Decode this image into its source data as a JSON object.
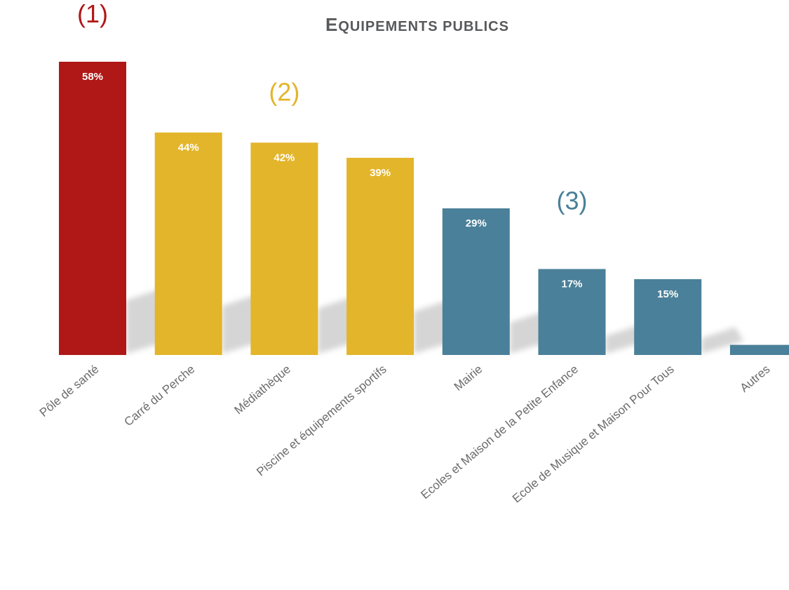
{
  "chart_data": {
    "type": "bar",
    "title": "Equipements publics",
    "categories": [
      "Pôle de santé",
      "Carré du Perche",
      "Médiathèque",
      "Piscine et équipements sportifs",
      "Mairie",
      "Ecoles et Maison de la Petite Enfance",
      "Ecole de Musique et Maison Pour Tous",
      "Autres"
    ],
    "values": [
      58,
      44,
      42,
      39,
      29,
      17,
      15,
      2
    ],
    "value_labels": [
      "58%",
      "44%",
      "42%",
      "39%",
      "29%",
      "17%",
      "15%",
      ""
    ],
    "groups": [
      1,
      2,
      2,
      2,
      3,
      3,
      3,
      3
    ],
    "group_labels": [
      {
        "text": "(1)",
        "group": 1
      },
      {
        "text": "(2)",
        "group": 2
      },
      {
        "text": "(3)",
        "group": 3
      }
    ],
    "colors": {
      "group1": "#b01717",
      "group2": "#e3b52b",
      "group3": "#4a8099"
    },
    "xlabel": "",
    "ylabel": "",
    "ylim": [
      0,
      60
    ],
    "grid": false,
    "legend": "none"
  }
}
